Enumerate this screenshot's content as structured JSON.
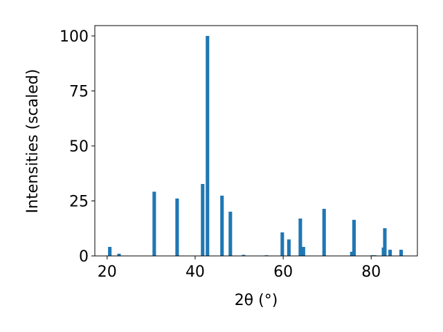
{
  "chart_data": {
    "type": "bar",
    "x_label": "2θ (°)",
    "y_label": "Intensities (scaled)",
    "x": [
      20.6,
      22.7,
      30.7,
      35.9,
      41.7,
      42.8,
      46.1,
      48.0,
      51.0,
      56.2,
      59.8,
      61.3,
      63.9,
      64.6,
      69.3,
      75.6,
      76.1,
      80.3,
      80.8,
      82.8,
      83.1,
      84.3,
      86.8
    ],
    "values": [
      4.1,
      1.0,
      29.2,
      26.1,
      32.7,
      100,
      27.4,
      20.1,
      0.5,
      0.3,
      10.7,
      7.5,
      17.0,
      4.1,
      21.4,
      1.9,
      16.4,
      0.3,
      0.3,
      3.8,
      12.6,
      2.8,
      2.8
    ],
    "color": "#1f77b4",
    "xlim": [
      17.2,
      90.5
    ],
    "ylim": [
      0,
      104.7
    ],
    "xticks": [
      20,
      40,
      60,
      80
    ],
    "yticks": [
      0,
      25,
      50,
      75,
      100
    ],
    "grid": false
  }
}
